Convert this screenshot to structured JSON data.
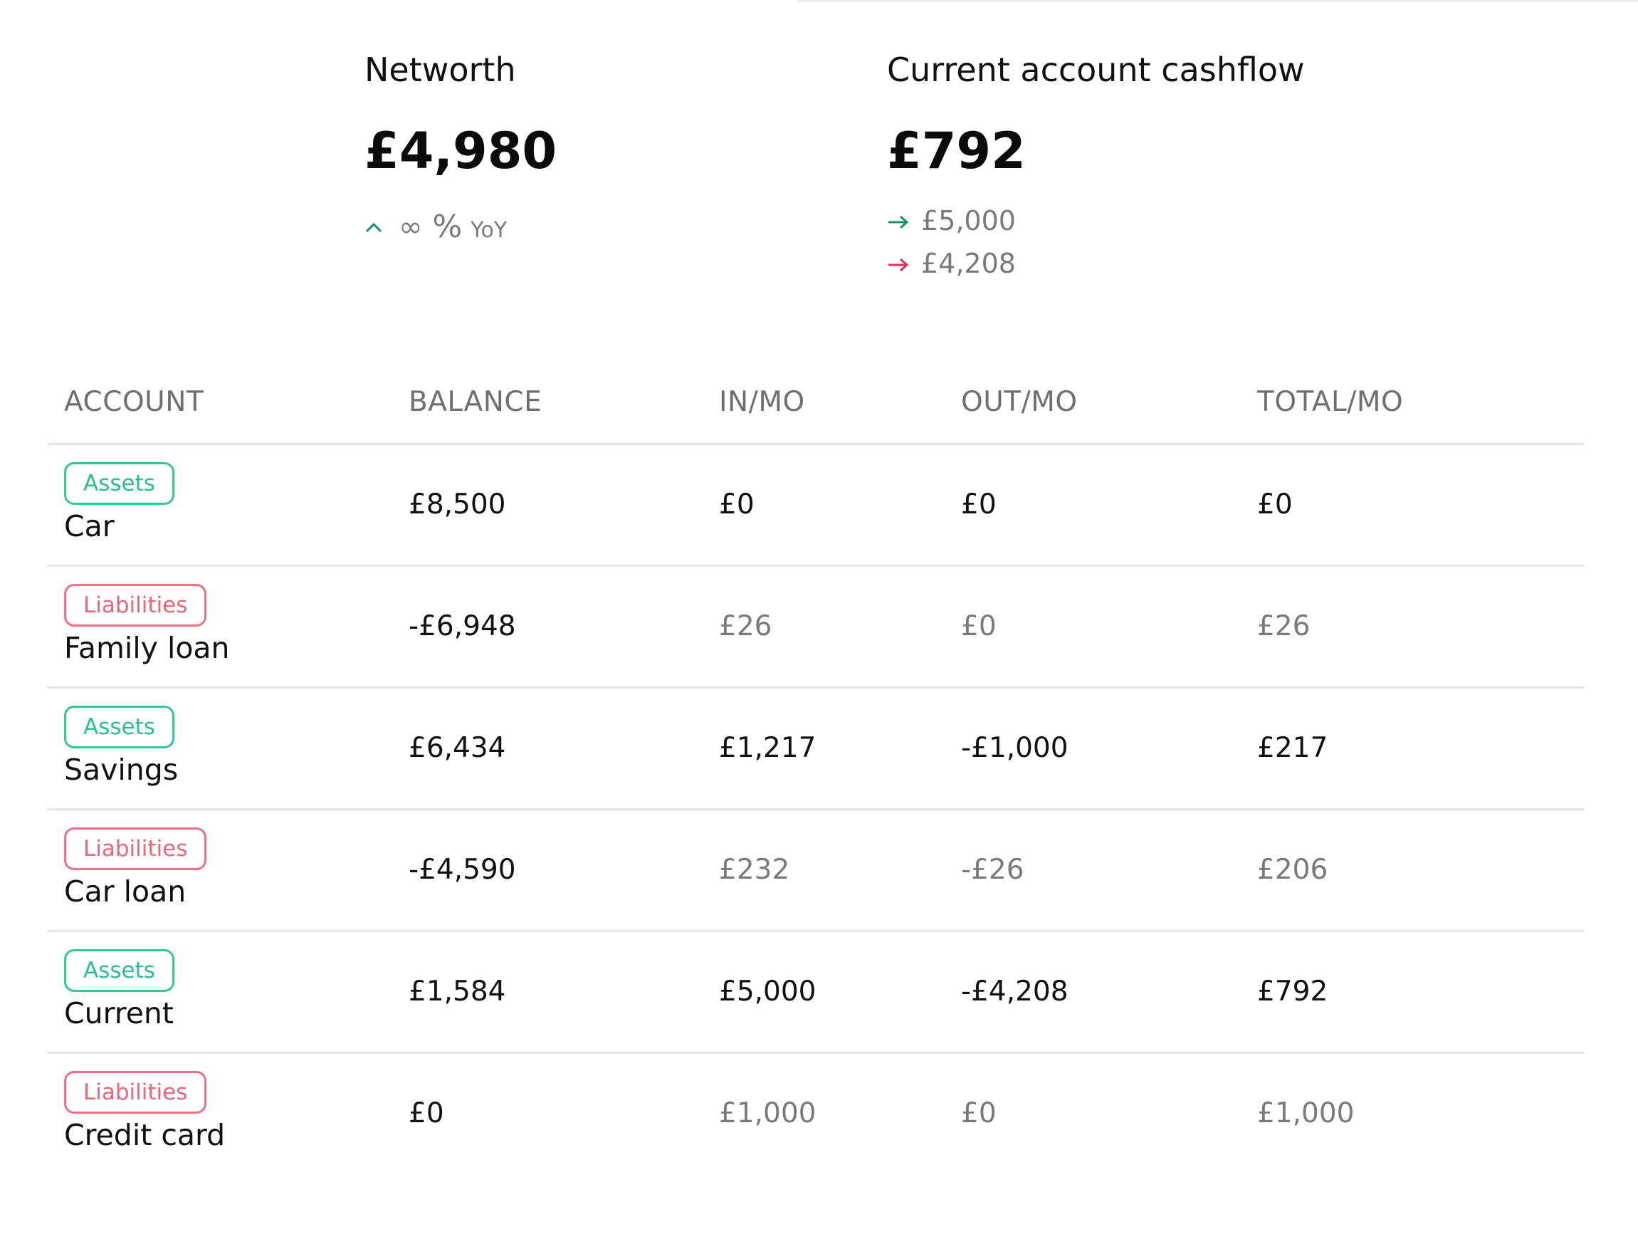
{
  "networth": {
    "label": "Networth",
    "value": "£4,980",
    "change_icon": "caret-up-icon",
    "change_value": "∞",
    "change_unit": "%",
    "change_period": "YoY"
  },
  "cashflow": {
    "label": "Current account cashflow",
    "value": "£792",
    "in_value": "£5,000",
    "out_value": "£4,208",
    "in_icon": "arrow-right-icon",
    "out_icon": "arrow-right-icon"
  },
  "colors": {
    "positive": "#17936b",
    "negative": "#d6335f",
    "assets_badge": "#2bbf8f",
    "liabilities_badge": "#e8677b"
  },
  "table": {
    "headers": {
      "account": "ACCOUNT",
      "balance": "BALANCE",
      "in": "IN/MO",
      "out": "OUT/MO",
      "total": "TOTAL/MO"
    },
    "rows": [
      {
        "type": "Assets",
        "name": "Car",
        "balance": "£8,500",
        "in": "£0",
        "out": "£0",
        "total": "£0"
      },
      {
        "type": "Liabilities",
        "name": "Family loan",
        "balance": "-£6,948",
        "in": "£26",
        "out": "£0",
        "total": "£26"
      },
      {
        "type": "Assets",
        "name": "Savings",
        "balance": "£6,434",
        "in": "£1,217",
        "out": "-£1,000",
        "total": "£217"
      },
      {
        "type": "Liabilities",
        "name": "Car loan",
        "balance": "-£4,590",
        "in": "£232",
        "out": "-£26",
        "total": "£206"
      },
      {
        "type": "Assets",
        "name": "Current",
        "balance": "£1,584",
        "in": "£5,000",
        "out": "-£4,208",
        "total": "£792"
      },
      {
        "type": "Liabilities",
        "name": "Credit card",
        "balance": "£0",
        "in": "£1,000",
        "out": "£0",
        "total": "£1,000"
      }
    ]
  }
}
